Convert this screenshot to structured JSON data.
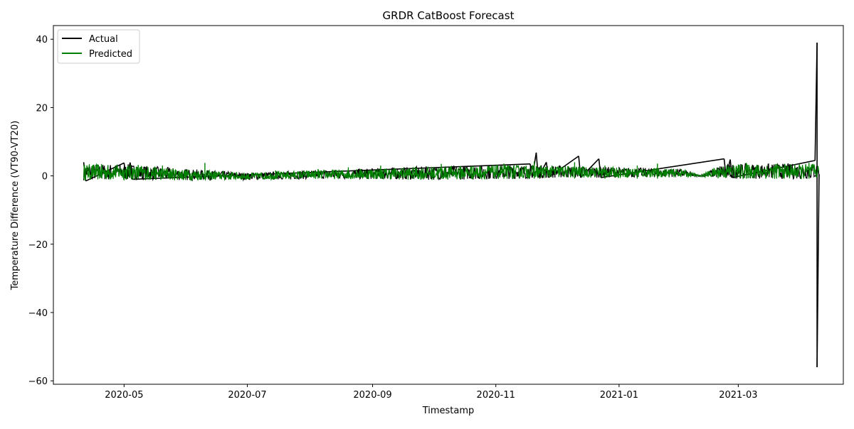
{
  "chart_data": {
    "type": "line",
    "title": "GRDR CatBoost Forecast",
    "xlabel": "Timestamp",
    "ylabel": "Temperature Difference (VT90-VT20)",
    "x_range": [
      "2020-03-27",
      "2021-04-22"
    ],
    "ylim": [
      -61,
      44
    ],
    "x_ticks": [
      {
        "date": "2020-05-01",
        "label": "2020-05"
      },
      {
        "date": "2020-07-01",
        "label": "2020-07"
      },
      {
        "date": "2020-09-01",
        "label": "2020-09"
      },
      {
        "date": "2020-11-01",
        "label": "2020-11"
      },
      {
        "date": "2021-01-01",
        "label": "2021-01"
      },
      {
        "date": "2021-03-01",
        "label": "2021-03"
      }
    ],
    "y_ticks": [
      {
        "value": 40,
        "label": "40"
      },
      {
        "value": 20,
        "label": "20"
      },
      {
        "value": 0,
        "label": "0"
      },
      {
        "value": -20,
        "label": "−20"
      },
      {
        "value": -40,
        "label": "−40"
      },
      {
        "value": -60,
        "label": "−60"
      }
    ],
    "grid": false,
    "legend_position": "top-left",
    "series": [
      {
        "name": "Actual",
        "color": "#000000",
        "points": [
          {
            "x": "2020-04-11",
            "y": 4.0
          },
          {
            "x": "2020-04-12",
            "y": -1.5
          },
          {
            "x": "2020-05-01",
            "y": 3.8
          },
          {
            "x": "2020-05-02",
            "y": -1.0
          },
          {
            "x": "2020-05-04",
            "y": 3.9
          },
          {
            "x": "2020-05-05",
            "y": -1.0
          },
          {
            "x": "2020-11-18",
            "y": 3.5
          },
          {
            "x": "2020-11-19",
            "y": -0.5
          },
          {
            "x": "2020-11-21",
            "y": 6.8
          },
          {
            "x": "2020-11-22",
            "y": -0.5
          },
          {
            "x": "2020-11-26",
            "y": 4.0
          },
          {
            "x": "2020-11-27",
            "y": -0.5
          },
          {
            "x": "2020-12-12",
            "y": 5.8
          },
          {
            "x": "2020-12-13",
            "y": -0.5
          },
          {
            "x": "2020-12-22",
            "y": 5.0
          },
          {
            "x": "2020-12-23",
            "y": -0.5
          },
          {
            "x": "2021-02-22",
            "y": 5.0
          },
          {
            "x": "2021-02-23",
            "y": -0.5
          },
          {
            "x": "2021-02-25",
            "y": 4.8
          },
          {
            "x": "2021-02-26",
            "y": -0.5
          },
          {
            "x": "2021-04-08",
            "y": 4.5
          },
          {
            "x": "2021-04-09",
            "y": 39.0
          },
          {
            "x": "2021-04-09",
            "y": -56.0
          },
          {
            "x": "2021-04-10",
            "y": 0.5
          }
        ]
      },
      {
        "name": "Predicted",
        "color": "#008000",
        "band_start": "2020-04-11",
        "band_end": "2021-04-10",
        "band": [
          {
            "x": "2020-04-11",
            "lo": -1.3,
            "hi": 3.5
          },
          {
            "x": "2020-05-01",
            "lo": -1.2,
            "hi": 3.4
          },
          {
            "x": "2020-06-01",
            "lo": -1.3,
            "hi": 2.0
          },
          {
            "x": "2020-07-01",
            "lo": -1.2,
            "hi": 0.9
          },
          {
            "x": "2020-08-01",
            "lo": -0.9,
            "hi": 1.6
          },
          {
            "x": "2020-09-01",
            "lo": -1.0,
            "hi": 2.2
          },
          {
            "x": "2020-10-01",
            "lo": -1.2,
            "hi": 2.8
          },
          {
            "x": "2020-11-01",
            "lo": -1.0,
            "hi": 3.2
          },
          {
            "x": "2020-12-01",
            "lo": -0.6,
            "hi": 3.0
          },
          {
            "x": "2021-01-01",
            "lo": -0.5,
            "hi": 2.5
          },
          {
            "x": "2021-02-01",
            "lo": -0.4,
            "hi": 2.0
          },
          {
            "x": "2021-02-10",
            "lo": -0.2,
            "hi": 0.2
          },
          {
            "x": "2021-02-20",
            "lo": -0.8,
            "hi": 3.2
          },
          {
            "x": "2021-03-01",
            "lo": -0.8,
            "hi": 3.5
          },
          {
            "x": "2021-04-10",
            "lo": -1.0,
            "hi": 3.5
          }
        ],
        "spikes": [
          {
            "x": "2020-04-20",
            "y": 3.0
          },
          {
            "x": "2020-05-08",
            "y": 3.2
          },
          {
            "x": "2020-05-20",
            "y": 3.0
          },
          {
            "x": "2020-06-10",
            "y": 3.8
          },
          {
            "x": "2020-07-15",
            "y": 1.6
          },
          {
            "x": "2020-08-05",
            "y": 2.0
          },
          {
            "x": "2020-08-20",
            "y": 2.5
          },
          {
            "x": "2020-09-05",
            "y": 3.0
          },
          {
            "x": "2020-10-05",
            "y": 3.5
          },
          {
            "x": "2020-10-20",
            "y": 2.8
          },
          {
            "x": "2020-11-05",
            "y": 3.6
          },
          {
            "x": "2020-11-20",
            "y": 4.2
          },
          {
            "x": "2020-12-10",
            "y": 4.0
          },
          {
            "x": "2020-12-25",
            "y": 3.0
          },
          {
            "x": "2021-01-10",
            "y": 3.0
          },
          {
            "x": "2021-01-20",
            "y": 3.6
          },
          {
            "x": "2021-03-05",
            "y": 3.8
          },
          {
            "x": "2021-03-20",
            "y": 3.5
          },
          {
            "x": "2021-04-05",
            "y": 3.8
          }
        ]
      }
    ]
  }
}
